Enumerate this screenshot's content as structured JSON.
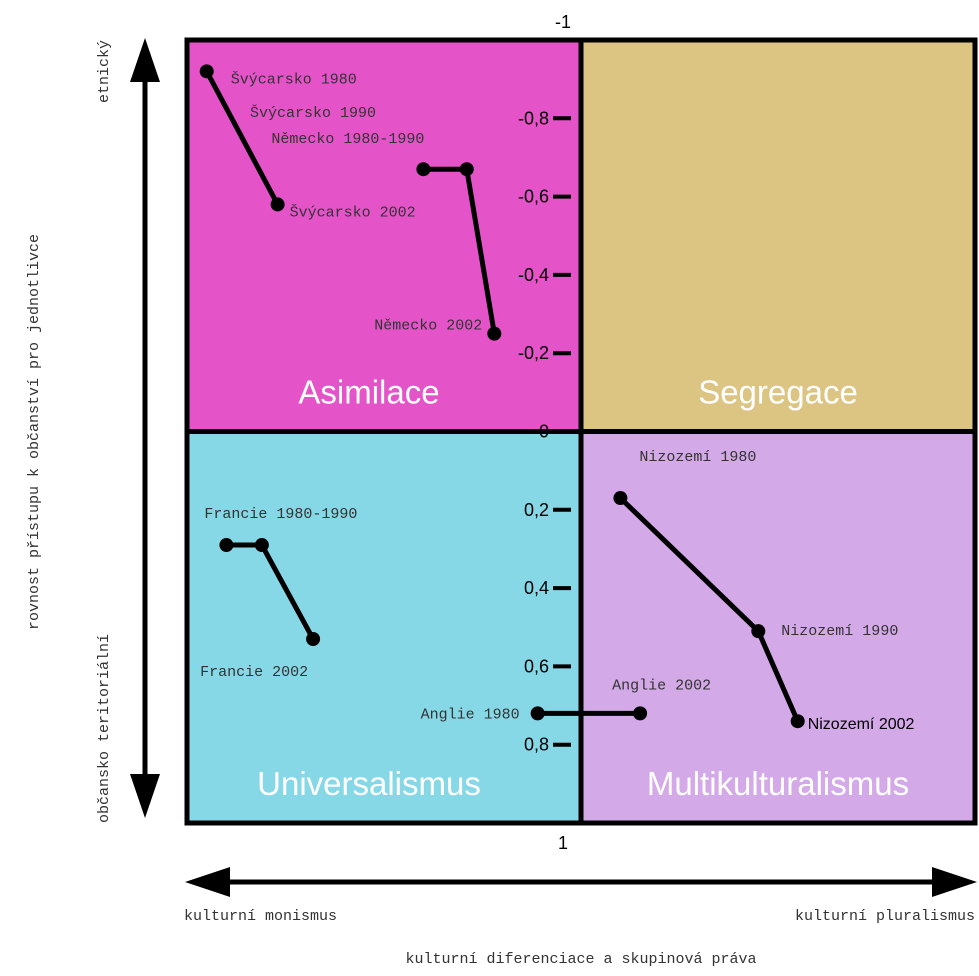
{
  "chart_data": {
    "type": "line",
    "ylabel": "rovnost přístupu k občanství pro jednotlivce",
    "ylabel_top": "etnický",
    "ylabel_bottom": "občansko teritoriální",
    "xlabel": "kulturní diferenciace a skupinová práva",
    "xlabel_left": "kulturní monismus",
    "xlabel_right": "kulturní pluralismus",
    "xlim": [
      -1,
      1
    ],
    "ylim": [
      -1,
      1
    ],
    "yticks": [
      -1,
      {
        "value": -0.8,
        "label": "-0,8"
      },
      {
        "value": -0.6,
        "label": "-0,6"
      },
      {
        "value": -0.4,
        "label": "-0,4"
      },
      {
        "value": -0.2,
        "label": "-0,2"
      },
      0,
      {
        "value": 0.2,
        "label": "0,2"
      },
      {
        "value": 0.4,
        "label": "0,4"
      },
      {
        "value": 0.6,
        "label": "0,6"
      },
      {
        "value": 0.8,
        "label": "0,8"
      },
      1
    ],
    "quadrants": [
      {
        "name": "Asimilace",
        "color": "#e454c8"
      },
      {
        "name": "Segregace",
        "color": "#dcc483"
      },
      {
        "name": "Universalismus",
        "color": "#87d8e6"
      },
      {
        "name": "Multikulturalismus",
        "color": "#d3a9e8"
      }
    ],
    "series": [
      {
        "color": "#000000",
        "x": [
          -0.95,
          -0.77
        ],
        "values": [
          -0.92,
          -0.58
        ],
        "labels": [
          "Švýcarsko 1980",
          "Švýcarsko 2002"
        ],
        "extra_label": "Švýcarsko 1990"
      },
      {
        "color": "#000000",
        "x": [
          -0.4,
          -0.29,
          -0.22
        ],
        "values": [
          -0.67,
          -0.67,
          -0.25
        ],
        "labels": [
          "Německo 1980-1990",
          null,
          "Německo 2002"
        ]
      },
      {
        "color": "#000000",
        "x": [
          -0.9,
          -0.81,
          -0.68
        ],
        "values": [
          0.29,
          0.29,
          0.53
        ],
        "labels": [
          "Francie 1980-1990",
          null,
          "Francie 2002"
        ]
      },
      {
        "color": "#000000",
        "x": [
          0.1,
          0.45,
          0.55
        ],
        "values": [
          0.17,
          0.51,
          0.74
        ],
        "labels": [
          "Nizozemí 1980",
          "Nizozemí 1990",
          "Nizozemí 2002"
        ]
      },
      {
        "color": "#000000",
        "x": [
          -0.11,
          0.15
        ],
        "values": [
          0.72,
          0.72
        ],
        "labels": [
          "Anglie 1980",
          "Anglie 2002"
        ]
      }
    ]
  }
}
